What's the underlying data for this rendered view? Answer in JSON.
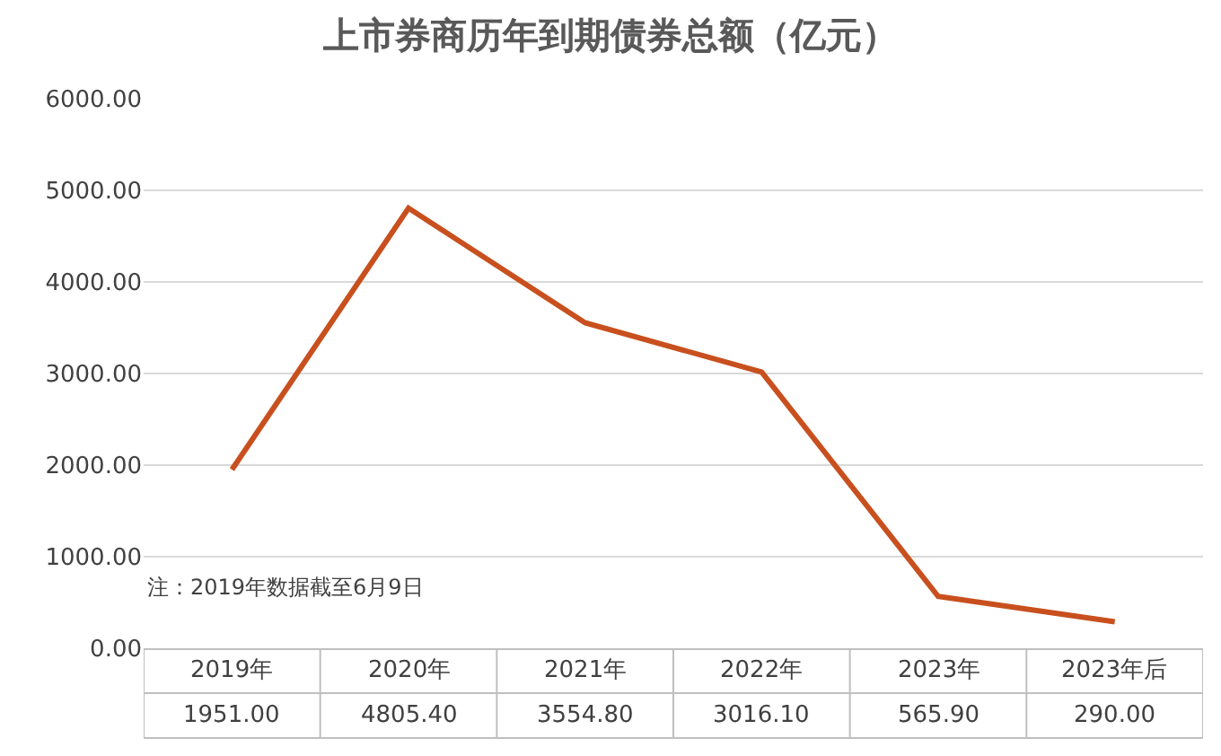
{
  "chart_data": {
    "type": "line",
    "title": "上市券商历年到期债券总额（亿元）",
    "categories": [
      "2019年",
      "2020年",
      "2021年",
      "2022年",
      "2023年",
      "2023年后"
    ],
    "series": [
      {
        "color": "#c8501e",
        "values": [
          1951.0,
          4805.4,
          3554.8,
          3016.1,
          565.9,
          290.0
        ]
      }
    ],
    "ylim": [
      0,
      6000
    ],
    "yticks": [
      {
        "value": 0,
        "label": "0.00"
      },
      {
        "value": 1000,
        "label": "1000.00"
      },
      {
        "value": 2000,
        "label": "2000.00"
      },
      {
        "value": 3000,
        "label": "3000.00"
      },
      {
        "value": 4000,
        "label": "4000.00"
      },
      {
        "value": 5000,
        "label": "5000.00"
      },
      {
        "value": 6000,
        "label": "6000.00"
      }
    ],
    "value_labels": [
      "1951.00",
      "4805.40",
      "3554.80",
      "3016.10",
      "565.90",
      "290.00"
    ],
    "annotations": [
      "注：2019年数据截至6月9日"
    ],
    "grid": "y",
    "marker": "none",
    "line_style": "solid"
  }
}
